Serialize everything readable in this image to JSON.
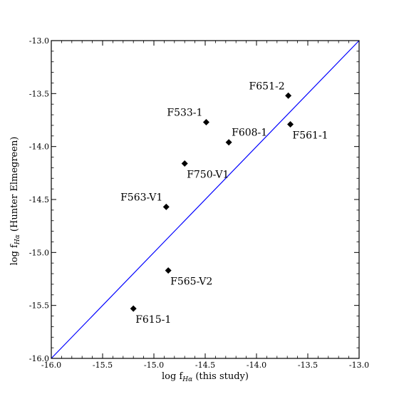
{
  "chart_data": {
    "type": "scatter",
    "title": "",
    "xlabel": "log f",
    "xlabel_sub": "Hα",
    "xlabel_suffix": " (this study)",
    "ylabel": "log f",
    "ylabel_sub": "Hα",
    "ylabel_suffix": " (Hunter Elmegreen)",
    "xlim": [
      -16.0,
      -13.0
    ],
    "ylim": [
      -16.0,
      -13.0
    ],
    "xticks": [
      -16.0,
      -15.5,
      -15.0,
      -14.5,
      -14.0,
      -13.5,
      -13.0
    ],
    "yticks": [
      -16.0,
      -15.5,
      -15.0,
      -14.5,
      -14.0,
      -13.5,
      -13.0
    ],
    "xtick_labels": [
      "-16.0",
      "-15.5",
      "-15.0",
      "-14.5",
      "-14.0",
      "-13.5",
      "-13.0"
    ],
    "ytick_labels": [
      "-16.0",
      "-15.5",
      "-15.0",
      "-14.5",
      "-14.0",
      "-13.5",
      "-13.0"
    ],
    "grid": false,
    "line_color": "#0000ff",
    "marker_color": "#000000",
    "reference_line": {
      "x": [
        -16.0,
        -13.0
      ],
      "y": [
        -16.0,
        -13.0
      ]
    },
    "points": [
      {
        "label": "F651-2",
        "x": -13.69,
        "y": -13.52,
        "label_pos": "above-left"
      },
      {
        "label": "F533-1",
        "x": -14.49,
        "y": -13.77,
        "label_pos": "above-left"
      },
      {
        "label": "F608-1",
        "x": -14.27,
        "y": -13.96,
        "label_pos": "above-right"
      },
      {
        "label": "F561-1",
        "x": -13.67,
        "y": -13.79,
        "label_pos": "below-right"
      },
      {
        "label": "F750-V1",
        "x": -14.7,
        "y": -14.16,
        "label_pos": "below-right"
      },
      {
        "label": "F563-V1",
        "x": -14.88,
        "y": -14.57,
        "label_pos": "above-left"
      },
      {
        "label": "F565-V2",
        "x": -14.86,
        "y": -15.17,
        "label_pos": "below-right"
      },
      {
        "label": "F615-1",
        "x": -15.2,
        "y": -15.53,
        "label_pos": "below-right"
      }
    ]
  }
}
